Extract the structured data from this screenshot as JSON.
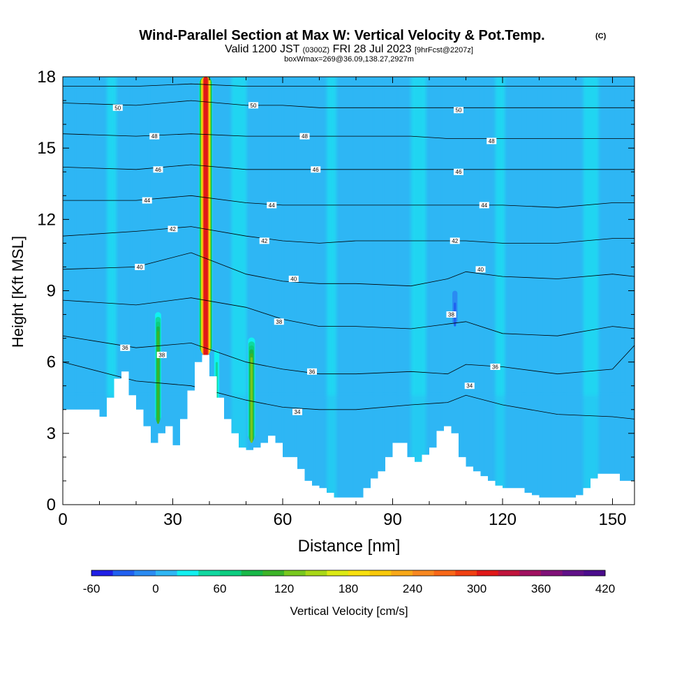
{
  "chart_data": {
    "type": "heatmap",
    "title": "Wind-Parallel Section at Max W: Vertical Velocity & Pot.Temp.",
    "title_mark": "(C)",
    "subtitle": {
      "prefix": "Valid 1200 JST",
      "utc": "(0300Z)",
      "date": "FRI 28 Jul 2023",
      "forecast": "[9hrFcst@2207z]"
    },
    "box_info": "boxWmax=269@36.09,138.27,2927m",
    "xlabel": "Distance [nm]",
    "ylabel": "Height [Kft MSL]",
    "xlim": [
      0,
      156
    ],
    "ylim": [
      0,
      18
    ],
    "x_ticks": [
      0,
      30,
      60,
      90,
      120,
      150
    ],
    "y_ticks": [
      0,
      3,
      6,
      9,
      12,
      15,
      18
    ],
    "colorbar": {
      "label": "Vertical Velocity [cm/s]",
      "min": -60,
      "max": 420,
      "step": 20,
      "tick_labels": [
        "-60",
        "0",
        "60",
        "120",
        "180",
        "240",
        "300",
        "360",
        "420"
      ],
      "colors": [
        "#1f1fe6",
        "#2060f0",
        "#2a8bf2",
        "#2eb6f4",
        "#12f0f0",
        "#10d8a0",
        "#0ccd80",
        "#18b848",
        "#3cb428",
        "#78c81e",
        "#a8d817",
        "#dcea14",
        "#f8e00e",
        "#f8c80a",
        "#f8a818",
        "#f88820",
        "#f86818",
        "#f04012",
        "#e01818",
        "#c0143c",
        "#a01060",
        "#801078",
        "#601088",
        "#4a0c8c"
      ]
    },
    "terrain_profile": {
      "x": [
        0,
        8,
        10,
        12,
        14,
        16,
        18,
        20,
        22,
        24,
        26,
        28,
        30,
        32,
        34,
        36,
        38,
        40,
        42,
        44,
        46,
        48,
        50,
        52,
        54,
        56,
        58,
        60,
        62,
        64,
        66,
        68,
        70,
        72,
        74,
        76,
        78,
        80,
        82,
        84,
        86,
        88,
        90,
        92,
        94,
        96,
        98,
        100,
        102,
        104,
        106,
        108,
        110,
        112,
        114,
        116,
        118,
        120,
        122,
        124,
        126,
        128,
        130,
        132,
        134,
        136,
        138,
        140,
        142,
        144,
        146,
        148,
        150,
        152,
        154,
        156
      ],
      "height_kft": [
        4.0,
        4.0,
        3.7,
        4.5,
        5.3,
        5.6,
        4.6,
        4.0,
        3.3,
        2.6,
        3.0,
        3.3,
        2.5,
        3.6,
        4.8,
        6.0,
        6.3,
        5.4,
        4.5,
        3.6,
        3.0,
        2.4,
        2.3,
        2.4,
        2.6,
        2.9,
        2.6,
        2.0,
        2.0,
        1.5,
        1.0,
        0.8,
        0.7,
        0.5,
        0.3,
        0.3,
        0.3,
        0.3,
        0.7,
        1.1,
        1.4,
        2.0,
        2.6,
        2.6,
        2.0,
        1.8,
        2.1,
        2.4,
        3.1,
        3.3,
        3.0,
        2.0,
        1.6,
        1.4,
        1.2,
        1.0,
        0.8,
        0.7,
        0.7,
        0.7,
        0.5,
        0.4,
        0.3,
        0.3,
        0.3,
        0.3,
        0.3,
        0.4,
        0.7,
        1.1,
        1.3,
        1.3,
        1.3,
        1.0,
        1.0,
        1.0
      ]
    },
    "background_w_cms": 0,
    "updraft_cores": [
      {
        "x": 39,
        "y_bottom": 6.2,
        "y_top": 18.0,
        "max_w": 300,
        "width_nm": 3.5
      },
      {
        "x": 26,
        "y_bottom": 3.4,
        "y_top": 8.3,
        "max_w": 100,
        "width_nm": 1.8
      },
      {
        "x": 51.5,
        "y_bottom": 2.6,
        "y_top": 7.2,
        "max_w": 120,
        "width_nm": 2.0
      },
      {
        "x": 42,
        "y_bottom": 2.5,
        "y_top": 7.0,
        "max_w": 40,
        "width_nm": 2.0
      },
      {
        "x": 107,
        "y_bottom": 7.5,
        "y_top": 9.5,
        "max_w": -40,
        "width_nm": 2.0
      }
    ],
    "theta_contours": [
      {
        "label": "34",
        "x": [
          0,
          20,
          35,
          50,
          60,
          70,
          80,
          95,
          105,
          110,
          120,
          135,
          150,
          156
        ],
        "y": [
          6.0,
          5.2,
          5.0,
          4.4,
          4.1,
          4.0,
          4.0,
          4.2,
          4.3,
          4.6,
          4.2,
          3.8,
          3.7,
          3.6
        ],
        "label_pos": [
          [
            64,
            3.9
          ],
          [
            111,
            5.0
          ]
        ]
      },
      {
        "label": "36",
        "x": [
          0,
          20,
          35,
          50,
          60,
          70,
          80,
          95,
          105,
          110,
          120,
          135,
          150,
          156
        ],
        "y": [
          7.1,
          6.6,
          6.8,
          6.0,
          5.7,
          5.5,
          5.5,
          5.6,
          5.5,
          5.9,
          5.8,
          5.5,
          5.7,
          6.7
        ],
        "label_pos": [
          [
            17,
            6.6
          ],
          [
            68,
            5.6
          ],
          [
            118,
            5.8
          ]
        ]
      },
      {
        "label": "38",
        "x": [
          0,
          20,
          35,
          50,
          60,
          70,
          80,
          95,
          105,
          110,
          120,
          135,
          150,
          156
        ],
        "y": [
          8.6,
          8.4,
          8.7,
          8.3,
          7.8,
          7.5,
          7.5,
          7.4,
          7.6,
          7.7,
          7.2,
          7.1,
          7.5,
          7.4
        ],
        "label_pos": [
          [
            27,
            6.3
          ],
          [
            59,
            7.7
          ],
          [
            106,
            8.0
          ]
        ]
      },
      {
        "label": "40",
        "x": [
          0,
          20,
          35,
          50,
          60,
          70,
          80,
          95,
          105,
          110,
          120,
          135,
          150,
          156
        ],
        "y": [
          9.9,
          10.0,
          10.6,
          9.7,
          9.4,
          9.3,
          9.3,
          9.2,
          9.5,
          9.8,
          9.6,
          9.5,
          9.7,
          9.6
        ],
        "label_pos": [
          [
            21,
            10.0
          ],
          [
            63,
            9.5
          ],
          [
            114,
            9.9
          ]
        ]
      },
      {
        "label": "42",
        "x": [
          0,
          20,
          35,
          50,
          60,
          70,
          80,
          95,
          105,
          110,
          120,
          135,
          150,
          156
        ],
        "y": [
          11.3,
          11.5,
          11.7,
          11.3,
          11.1,
          11.0,
          11.1,
          11.1,
          11.1,
          11.1,
          11.0,
          11.0,
          11.2,
          11.2
        ],
        "label_pos": [
          [
            30,
            11.6
          ],
          [
            55,
            11.1
          ],
          [
            107,
            11.1
          ]
        ]
      },
      {
        "label": "44",
        "x": [
          0,
          20,
          35,
          50,
          60,
          70,
          80,
          95,
          105,
          110,
          120,
          135,
          150,
          156
        ],
        "y": [
          12.8,
          12.8,
          13.0,
          12.7,
          12.6,
          12.6,
          12.6,
          12.6,
          12.6,
          12.6,
          12.6,
          12.5,
          12.7,
          12.7
        ],
        "label_pos": [
          [
            23,
            12.8
          ],
          [
            57,
            12.6
          ],
          [
            115,
            12.6
          ]
        ]
      },
      {
        "label": "46",
        "x": [
          0,
          20,
          35,
          50,
          60,
          70,
          80,
          95,
          105,
          110,
          120,
          135,
          150,
          156
        ],
        "y": [
          14.2,
          14.1,
          14.3,
          14.1,
          14.1,
          14.1,
          14.1,
          14.1,
          14.1,
          14.1,
          14.1,
          14.1,
          14.1,
          14.1
        ],
        "label_pos": [
          [
            26,
            14.1
          ],
          [
            69,
            14.1
          ],
          [
            108,
            14.0
          ]
        ]
      },
      {
        "label": "48",
        "x": [
          0,
          20,
          35,
          50,
          60,
          70,
          80,
          95,
          105,
          110,
          120,
          135,
          150,
          156
        ],
        "y": [
          15.6,
          15.5,
          15.6,
          15.5,
          15.5,
          15.5,
          15.5,
          15.5,
          15.4,
          15.4,
          15.4,
          15.4,
          15.4,
          15.4
        ],
        "label_pos": [
          [
            25,
            15.5
          ],
          [
            66,
            15.5
          ],
          [
            117,
            15.3
          ]
        ]
      },
      {
        "label": "50",
        "x": [
          0,
          20,
          35,
          50,
          60,
          70,
          80,
          95,
          105,
          110,
          120,
          135,
          150,
          156
        ],
        "y": [
          16.9,
          16.8,
          17.0,
          16.8,
          16.8,
          16.7,
          16.7,
          16.7,
          16.7,
          16.7,
          16.7,
          16.7,
          16.7,
          16.7
        ],
        "label_pos": [
          [
            15,
            16.7
          ],
          [
            52,
            16.8
          ],
          [
            108,
            16.6
          ]
        ]
      },
      {
        "label": "",
        "x": [
          0,
          20,
          35,
          50,
          60,
          70,
          80,
          95,
          105,
          110,
          120,
          135,
          150,
          156
        ],
        "y": [
          17.6,
          17.6,
          17.7,
          17.6,
          17.6,
          17.6,
          17.6,
          17.6,
          17.6,
          17.6,
          17.6,
          17.6,
          17.6,
          17.6
        ],
        "label_pos": []
      }
    ]
  }
}
